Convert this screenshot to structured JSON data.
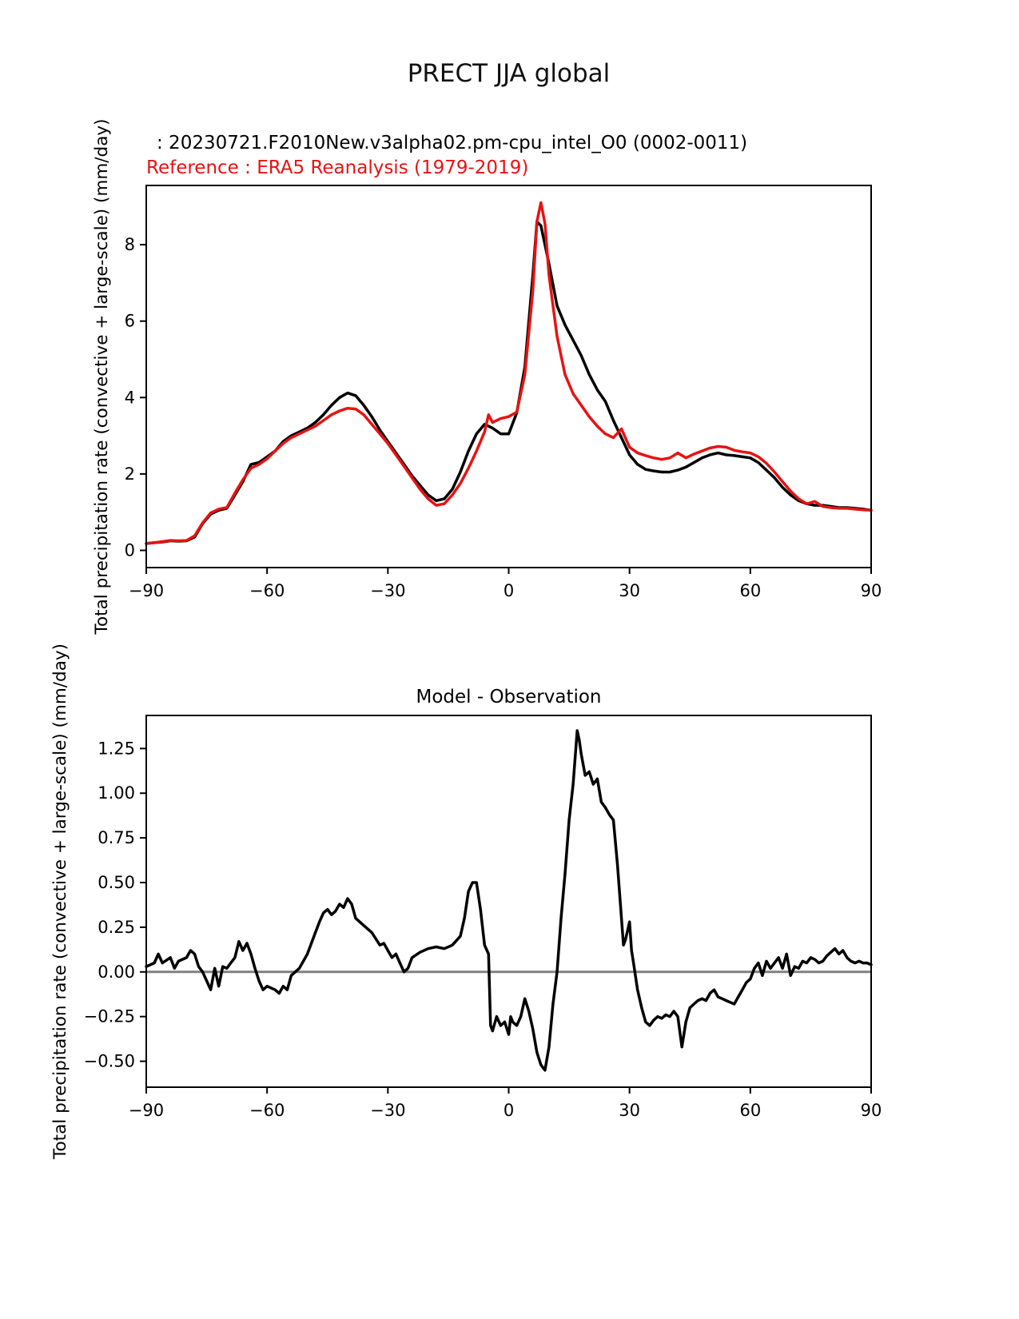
{
  "page": {
    "title": "PRECT JJA global"
  },
  "header": {
    "model_line": ": 20230721.F2010New.v3alpha02.pm-cpu_intel_O0 (0002-0011)",
    "reference_line": "Reference : ERA5 Reanalysis (1979-2019)"
  },
  "colors": {
    "model": "#000000",
    "reference": "#e81212",
    "zero_line": "#808080",
    "axis": "#000000"
  },
  "chart_data": [
    {
      "type": "line",
      "title": "",
      "xlabel": "",
      "ylabel": "Total precipitation rate (convective + large-scale) (mm/day)",
      "xlim": [
        -90,
        90
      ],
      "ylim": [
        -0.45,
        9.55
      ],
      "grid": false,
      "legend": "none",
      "xticks": [
        -90,
        -60,
        -30,
        0,
        30,
        60,
        90
      ],
      "xtick_labels": [
        "−90",
        "−60",
        "−30",
        "0",
        "30",
        "60",
        "90"
      ],
      "yticks": [
        0,
        2,
        4,
        6,
        8
      ],
      "ytick_labels": [
        "0",
        "2",
        "4",
        "6",
        "8"
      ],
      "series": [
        {
          "name": "model",
          "color": "#000000",
          "x": [
            -90,
            -88,
            -86,
            -84,
            -82,
            -80,
            -78,
            -76,
            -74,
            -72,
            -70,
            -68,
            -66,
            -64,
            -62,
            -60,
            -58,
            -56,
            -54,
            -52,
            -50,
            -48,
            -46,
            -44,
            -42,
            -40,
            -38,
            -36,
            -34,
            -32,
            -30,
            -28,
            -26,
            -24,
            -22,
            -20,
            -18,
            -16,
            -14,
            -12,
            -10,
            -8,
            -6,
            -4,
            -2,
            0,
            2,
            4,
            6,
            7,
            8,
            10,
            12,
            14,
            16,
            18,
            20,
            22,
            24,
            26,
            28,
            30,
            32,
            34,
            36,
            38,
            40,
            42,
            44,
            46,
            48,
            50,
            52,
            54,
            56,
            58,
            60,
            62,
            64,
            66,
            68,
            70,
            72,
            74,
            76,
            78,
            80,
            82,
            84,
            86,
            88,
            90
          ],
          "y": [
            0.18,
            0.2,
            0.22,
            0.25,
            0.24,
            0.25,
            0.35,
            0.7,
            0.95,
            1.05,
            1.1,
            1.45,
            1.8,
            2.25,
            2.3,
            2.45,
            2.6,
            2.85,
            3.0,
            3.1,
            3.2,
            3.35,
            3.55,
            3.8,
            4.0,
            4.12,
            4.05,
            3.8,
            3.5,
            3.15,
            2.85,
            2.55,
            2.25,
            1.95,
            1.7,
            1.45,
            1.3,
            1.35,
            1.6,
            2.05,
            2.6,
            3.05,
            3.3,
            3.2,
            3.05,
            3.05,
            3.6,
            4.8,
            7.2,
            8.6,
            8.5,
            7.5,
            6.4,
            5.9,
            5.5,
            5.1,
            4.6,
            4.2,
            3.9,
            3.4,
            2.95,
            2.5,
            2.25,
            2.12,
            2.08,
            2.05,
            2.05,
            2.1,
            2.18,
            2.3,
            2.42,
            2.5,
            2.55,
            2.5,
            2.48,
            2.45,
            2.42,
            2.3,
            2.1,
            1.9,
            1.65,
            1.45,
            1.3,
            1.22,
            1.18,
            1.18,
            1.15,
            1.12,
            1.12,
            1.1,
            1.08,
            1.05
          ]
        },
        {
          "name": "ERA5 Reanalysis",
          "color": "#e81212",
          "x": [
            -90,
            -88,
            -86,
            -84,
            -82,
            -80,
            -78,
            -76,
            -74,
            -72,
            -70,
            -68,
            -66,
            -64,
            -62,
            -60,
            -58,
            -56,
            -54,
            -52,
            -50,
            -48,
            -46,
            -44,
            -42,
            -40,
            -38,
            -36,
            -34,
            -32,
            -30,
            -28,
            -26,
            -24,
            -22,
            -20,
            -18,
            -16,
            -14,
            -12,
            -10,
            -8,
            -6,
            -5,
            -4,
            -2,
            0,
            2,
            4,
            6,
            7,
            8,
            9,
            10,
            12,
            14,
            16,
            18,
            20,
            22,
            24,
            26,
            28,
            30,
            32,
            34,
            36,
            38,
            40,
            42,
            44,
            46,
            48,
            50,
            52,
            54,
            56,
            58,
            60,
            62,
            64,
            66,
            68,
            70,
            72,
            74,
            76,
            78,
            80,
            82,
            84,
            86,
            88,
            90
          ],
          "y": [
            0.18,
            0.2,
            0.23,
            0.26,
            0.25,
            0.26,
            0.38,
            0.72,
            0.98,
            1.08,
            1.12,
            1.5,
            1.85,
            2.15,
            2.25,
            2.4,
            2.6,
            2.8,
            2.95,
            3.05,
            3.15,
            3.25,
            3.4,
            3.55,
            3.65,
            3.72,
            3.7,
            3.55,
            3.3,
            3.05,
            2.8,
            2.5,
            2.2,
            1.9,
            1.6,
            1.35,
            1.18,
            1.22,
            1.45,
            1.75,
            2.15,
            2.6,
            3.1,
            3.55,
            3.35,
            3.45,
            3.5,
            3.62,
            4.6,
            6.8,
            8.6,
            9.1,
            8.55,
            7.2,
            5.6,
            4.6,
            4.1,
            3.8,
            3.5,
            3.25,
            3.05,
            2.95,
            3.18,
            2.7,
            2.55,
            2.48,
            2.42,
            2.38,
            2.42,
            2.55,
            2.42,
            2.52,
            2.6,
            2.68,
            2.72,
            2.7,
            2.62,
            2.58,
            2.55,
            2.45,
            2.28,
            2.05,
            1.8,
            1.55,
            1.35,
            1.22,
            1.28,
            1.15,
            1.12,
            1.1,
            1.1,
            1.08,
            1.06,
            1.05
          ]
        }
      ]
    },
    {
      "type": "line",
      "title": "Model - Observation",
      "xlabel": "",
      "ylabel": "Total precipitation rate (convective + large-scale) (mm/day)",
      "xlim": [
        -90,
        90
      ],
      "ylim": [
        -0.645,
        1.435
      ],
      "grid": false,
      "legend": "none",
      "refline": 0,
      "xticks": [
        -90,
        -60,
        -30,
        0,
        30,
        60,
        90
      ],
      "xtick_labels": [
        "−90",
        "−60",
        "−30",
        "0",
        "30",
        "60",
        "90"
      ],
      "yticks": [
        -0.5,
        -0.25,
        0,
        0.25,
        0.5,
        0.75,
        1.0,
        1.25
      ],
      "ytick_labels": [
        "−0.50",
        "−0.25",
        "0.00",
        "0.25",
        "0.50",
        "0.75",
        "1.00",
        "1.25"
      ],
      "series": [
        {
          "name": "model-minus-observation",
          "color": "#000000",
          "x": [
            -90,
            -88,
            -87,
            -86,
            -84,
            -83,
            -82,
            -80,
            -79,
            -78,
            -77,
            -76,
            -75,
            -74,
            -73,
            -72,
            -71,
            -70,
            -69,
            -68,
            -67,
            -66,
            -65,
            -64,
            -63,
            -62,
            -61,
            -60,
            -58,
            -57,
            -56,
            -55,
            -54,
            -52,
            -50,
            -48,
            -47,
            -46,
            -45,
            -44,
            -43,
            -42,
            -41,
            -40,
            -39,
            -38,
            -36,
            -34,
            -32,
            -31,
            -30,
            -29,
            -28,
            -27,
            -26,
            -25,
            -24,
            -22,
            -20,
            -18,
            -16,
            -14,
            -12,
            -11,
            -10,
            -9,
            -8,
            -7,
            -6,
            -5,
            -4.5,
            -4,
            -3,
            -2,
            -1,
            0,
            0.5,
            1,
            2,
            3,
            4,
            5,
            6,
            7,
            8,
            9,
            10,
            11,
            12,
            13,
            14,
            15,
            16,
            17,
            17.5,
            18,
            19,
            20,
            21,
            22,
            23,
            24,
            25,
            26,
            27,
            27.5,
            28,
            28.5,
            29,
            30,
            30.5,
            31,
            32,
            33,
            34,
            35,
            36,
            37,
            38,
            39,
            40,
            41,
            42,
            43,
            44,
            45,
            46,
            47,
            48,
            49,
            50,
            51,
            52,
            53,
            54,
            55,
            56,
            57,
            58,
            59,
            60,
            61,
            62,
            63,
            64,
            65,
            66,
            67,
            68,
            69,
            70,
            71,
            72,
            73,
            74,
            75,
            76,
            77,
            78,
            79,
            80,
            81,
            82,
            83,
            84,
            85,
            86,
            87,
            88,
            89,
            90
          ],
          "y": [
            0.03,
            0.05,
            0.1,
            0.05,
            0.08,
            0.02,
            0.06,
            0.08,
            0.12,
            0.1,
            0.03,
            0.0,
            -0.05,
            -0.1,
            0.02,
            -0.08,
            0.03,
            0.02,
            0.05,
            0.08,
            0.17,
            0.12,
            0.16,
            0.1,
            0.02,
            -0.05,
            -0.1,
            -0.08,
            -0.1,
            -0.12,
            -0.08,
            -0.1,
            -0.02,
            0.02,
            0.1,
            0.22,
            0.28,
            0.33,
            0.35,
            0.32,
            0.34,
            0.38,
            0.36,
            0.41,
            0.38,
            0.3,
            0.26,
            0.22,
            0.15,
            0.16,
            0.12,
            0.08,
            0.1,
            0.05,
            0.0,
            0.02,
            0.08,
            0.11,
            0.13,
            0.14,
            0.13,
            0.15,
            0.2,
            0.3,
            0.45,
            0.5,
            0.5,
            0.35,
            0.15,
            0.1,
            -0.3,
            -0.33,
            -0.25,
            -0.3,
            -0.28,
            -0.35,
            -0.25,
            -0.28,
            -0.3,
            -0.25,
            -0.15,
            -0.22,
            -0.32,
            -0.45,
            -0.52,
            -0.55,
            -0.42,
            -0.18,
            0.0,
            0.3,
            0.55,
            0.85,
            1.05,
            1.35,
            1.3,
            1.22,
            1.1,
            1.12,
            1.05,
            1.08,
            0.95,
            0.92,
            0.88,
            0.85,
            0.6,
            0.45,
            0.3,
            0.15,
            0.18,
            0.28,
            0.12,
            0.05,
            -0.1,
            -0.2,
            -0.28,
            -0.3,
            -0.27,
            -0.25,
            -0.26,
            -0.24,
            -0.25,
            -0.22,
            -0.25,
            -0.42,
            -0.28,
            -0.2,
            -0.18,
            -0.16,
            -0.15,
            -0.16,
            -0.12,
            -0.1,
            -0.14,
            -0.15,
            -0.16,
            -0.17,
            -0.18,
            -0.14,
            -0.1,
            -0.06,
            -0.04,
            0.02,
            0.05,
            -0.02,
            0.06,
            0.02,
            0.05,
            0.08,
            0.02,
            0.1,
            -0.02,
            0.03,
            0.02,
            0.06,
            0.05,
            0.08,
            0.07,
            0.05,
            0.06,
            0.09,
            0.11,
            0.13,
            0.1,
            0.12,
            0.08,
            0.06,
            0.05,
            0.06,
            0.05,
            0.05,
            0.04
          ]
        }
      ]
    }
  ]
}
